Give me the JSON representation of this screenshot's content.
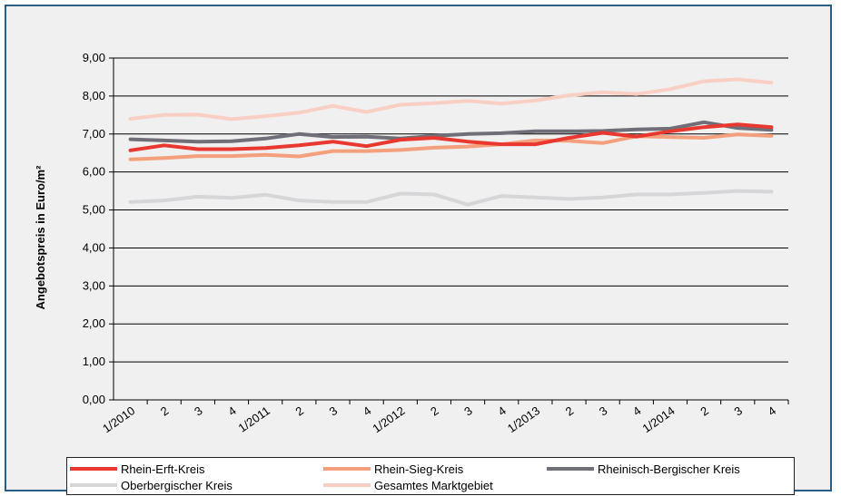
{
  "chart_data": {
    "type": "line",
    "ylabel": "Angebotspreis in Euro/m²",
    "ylim": [
      0,
      9
    ],
    "yticks": [
      "0,00",
      "1,00",
      "2,00",
      "3,00",
      "4,00",
      "5,00",
      "6,00",
      "7,00",
      "8,00",
      "9,00"
    ],
    "categories": [
      "1/2010",
      "2",
      "3",
      "4",
      "1/2011",
      "2",
      "3",
      "4",
      "1/2012",
      "2",
      "3",
      "4",
      "1/2013",
      "2",
      "3",
      "4",
      "1/2014",
      "2",
      "3",
      "4"
    ],
    "grid": "horizontal",
    "legend_position": "bottom",
    "series": [
      {
        "name": "Rhein-Erft-Kreis",
        "color": "#e8382f",
        "values": [
          6.57,
          6.7,
          6.6,
          6.6,
          6.63,
          6.7,
          6.8,
          6.68,
          6.85,
          6.9,
          6.8,
          6.73,
          6.73,
          6.9,
          7.03,
          6.93,
          7.07,
          7.18,
          7.25,
          7.18
        ]
      },
      {
        "name": "Rhein-Sieg-Kreis",
        "color": "#f4a07c",
        "values": [
          6.33,
          6.37,
          6.42,
          6.42,
          6.45,
          6.41,
          6.55,
          6.55,
          6.58,
          6.64,
          6.67,
          6.73,
          6.83,
          6.82,
          6.76,
          6.94,
          6.92,
          6.9,
          6.99,
          6.95
        ]
      },
      {
        "name": "Rheinisch-Bergischer Kreis",
        "color": "#6f6f77",
        "values": [
          6.86,
          6.83,
          6.8,
          6.81,
          6.88,
          7.0,
          6.92,
          6.93,
          6.88,
          6.95,
          7.0,
          7.02,
          7.07,
          7.07,
          7.08,
          7.12,
          7.14,
          7.31,
          7.16,
          7.11
        ]
      },
      {
        "name": "Oberbergischer Kreis",
        "color": "#d6d6d9",
        "values": [
          5.21,
          5.25,
          5.35,
          5.32,
          5.4,
          5.25,
          5.21,
          5.21,
          5.43,
          5.41,
          5.14,
          5.37,
          5.33,
          5.29,
          5.33,
          5.41,
          5.41,
          5.45,
          5.5,
          5.48
        ]
      },
      {
        "name": "Gesamtes Marktgebiet",
        "color": "#f9cfc4",
        "values": [
          7.4,
          7.5,
          7.51,
          7.39,
          7.47,
          7.56,
          7.74,
          7.58,
          7.77,
          7.81,
          7.87,
          7.8,
          7.88,
          8.02,
          8.1,
          8.05,
          8.18,
          8.39,
          8.44,
          8.35
        ]
      }
    ]
  }
}
